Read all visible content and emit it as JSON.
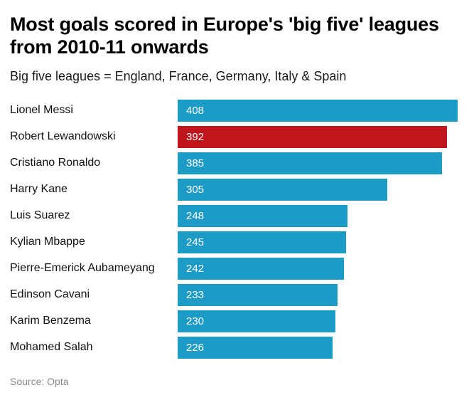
{
  "chart_data": {
    "type": "bar",
    "orientation": "horizontal",
    "title": "Most goals scored in Europe's 'big five' leagues from 2010-11 onwards",
    "subtitle": "Big five leagues = England, France, Germany, Italy & Spain",
    "source": "Source: Opta",
    "categories": [
      "Lionel Messi",
      "Robert Lewandowski",
      "Cristiano Ronaldo",
      "Harry Kane",
      "Luis Suarez",
      "Kylian Mbappe",
      "Pierre-Emerick Aubameyang",
      "Edinson Cavani",
      "Karim Benzema",
      "Mohamed Salah"
    ],
    "values": [
      408,
      392,
      385,
      305,
      248,
      245,
      242,
      233,
      230,
      226
    ],
    "highlight_category": "Robert Lewandowski",
    "highlight_index": 1,
    "colors": {
      "bar": "#1d9bc7",
      "highlight": "#c0151c",
      "value_text": "#ffffff"
    },
    "xlim": [
      0,
      408
    ],
    "value_labels": "inside-left",
    "grid": false,
    "legend": false
  }
}
